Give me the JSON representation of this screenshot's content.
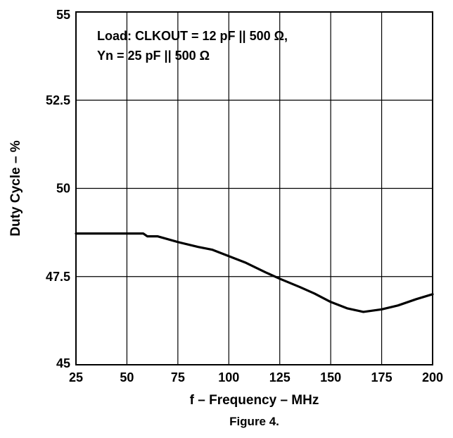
{
  "chart_data": {
    "type": "line",
    "title": "",
    "xlabel": "f – Frequency – MHz",
    "ylabel": "Duty Cycle – %",
    "xlim": [
      25,
      200
    ],
    "ylim": [
      45,
      55
    ],
    "x_ticks": [
      25,
      50,
      75,
      100,
      125,
      150,
      175,
      200
    ],
    "y_ticks": [
      45,
      47.5,
      50,
      52.5,
      55
    ],
    "x_tick_labels": [
      "25",
      "50",
      "75",
      "100",
      "125",
      "150",
      "175",
      "200"
    ],
    "y_tick_labels": [
      "45",
      "47.5",
      "50",
      "52.5",
      "55"
    ],
    "grid": true,
    "legend": "none",
    "annotation_lines": [
      "Load: CLKOUT = 12 pF || 500 Ω,",
      "Yn = 25 pF || 500 Ω"
    ],
    "series": [
      {
        "color": "#000000",
        "x": [
          25,
          40,
          50,
          58,
          60,
          65,
          75,
          85,
          92,
          100,
          108,
          118,
          125,
          135,
          142,
          150,
          158,
          166,
          175,
          183,
          192,
          200
        ],
        "y": [
          48.72,
          48.72,
          48.72,
          48.72,
          48.64,
          48.64,
          48.48,
          48.34,
          48.26,
          48.08,
          47.9,
          47.62,
          47.44,
          47.2,
          47.02,
          46.78,
          46.6,
          46.5,
          46.57,
          46.68,
          46.86,
          47.0
        ]
      }
    ]
  },
  "caption": "Figure 4."
}
